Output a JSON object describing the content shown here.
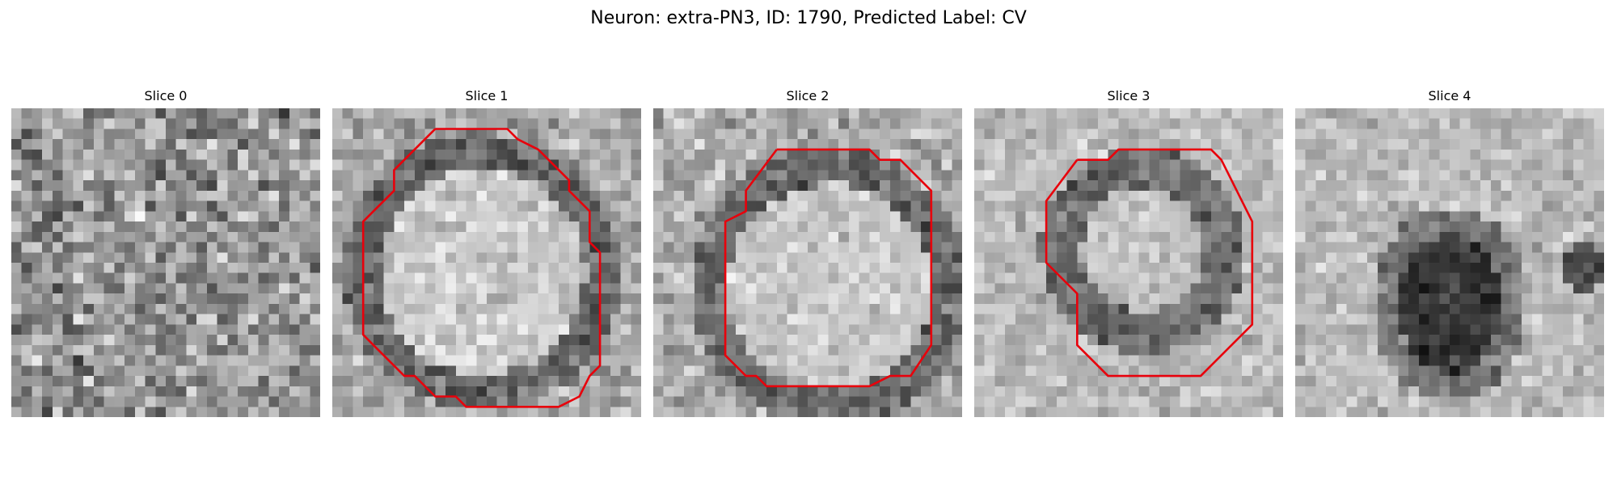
{
  "figure": {
    "title": "Neuron: extra-PN3, ID: 1790, Predicted Label: CV",
    "grid_size": 30,
    "contour_color": "#e8000b",
    "colormap": "gray",
    "slices": [
      {
        "label": "Slice 0",
        "blob": "none",
        "contour": []
      },
      {
        "label": "Slice 1",
        "blob": "bright-soma-dark-ring",
        "contour": [
          [
            10,
            2
          ],
          [
            17,
            2
          ],
          [
            18,
            3
          ],
          [
            20,
            4
          ],
          [
            23,
            7
          ],
          [
            23,
            8
          ],
          [
            25,
            10
          ],
          [
            25,
            13
          ],
          [
            26,
            14
          ],
          [
            26,
            25
          ],
          [
            25,
            26
          ],
          [
            24,
            28
          ],
          [
            22,
            29
          ],
          [
            13,
            29
          ],
          [
            12,
            28
          ],
          [
            10,
            28
          ],
          [
            8,
            26
          ],
          [
            7,
            26
          ],
          [
            4,
            23
          ],
          [
            3,
            22
          ],
          [
            3,
            20
          ],
          [
            3,
            11
          ],
          [
            4,
            10
          ],
          [
            6,
            8
          ],
          [
            6,
            6
          ],
          [
            7,
            5
          ],
          [
            9,
            3
          ]
        ]
      },
      {
        "label": "Slice 2",
        "blob": "bright-soma-dark-ring",
        "contour": [
          [
            12,
            4
          ],
          [
            21,
            4
          ],
          [
            22,
            5
          ],
          [
            24,
            5
          ],
          [
            27,
            8
          ],
          [
            27,
            23
          ],
          [
            25,
            26
          ],
          [
            23,
            26
          ],
          [
            21,
            27
          ],
          [
            20,
            27
          ],
          [
            11,
            27
          ],
          [
            10,
            26
          ],
          [
            9,
            26
          ],
          [
            7,
            24
          ],
          [
            7,
            11
          ],
          [
            9,
            10
          ],
          [
            9,
            8
          ]
        ]
      },
      {
        "label": "Slice 3",
        "blob": "small-soma-dark-ring",
        "contour": [
          [
            10,
            5
          ],
          [
            13,
            5
          ],
          [
            14,
            4
          ],
          [
            23,
            4
          ],
          [
            24,
            5
          ],
          [
            27,
            11
          ],
          [
            27,
            21
          ],
          [
            22,
            26
          ],
          [
            13,
            26
          ],
          [
            10,
            23
          ],
          [
            10,
            18
          ],
          [
            7,
            15
          ],
          [
            7,
            9
          ]
        ]
      },
      {
        "label": "Slice 4",
        "blob": "dark-blob",
        "contour": []
      }
    ]
  }
}
